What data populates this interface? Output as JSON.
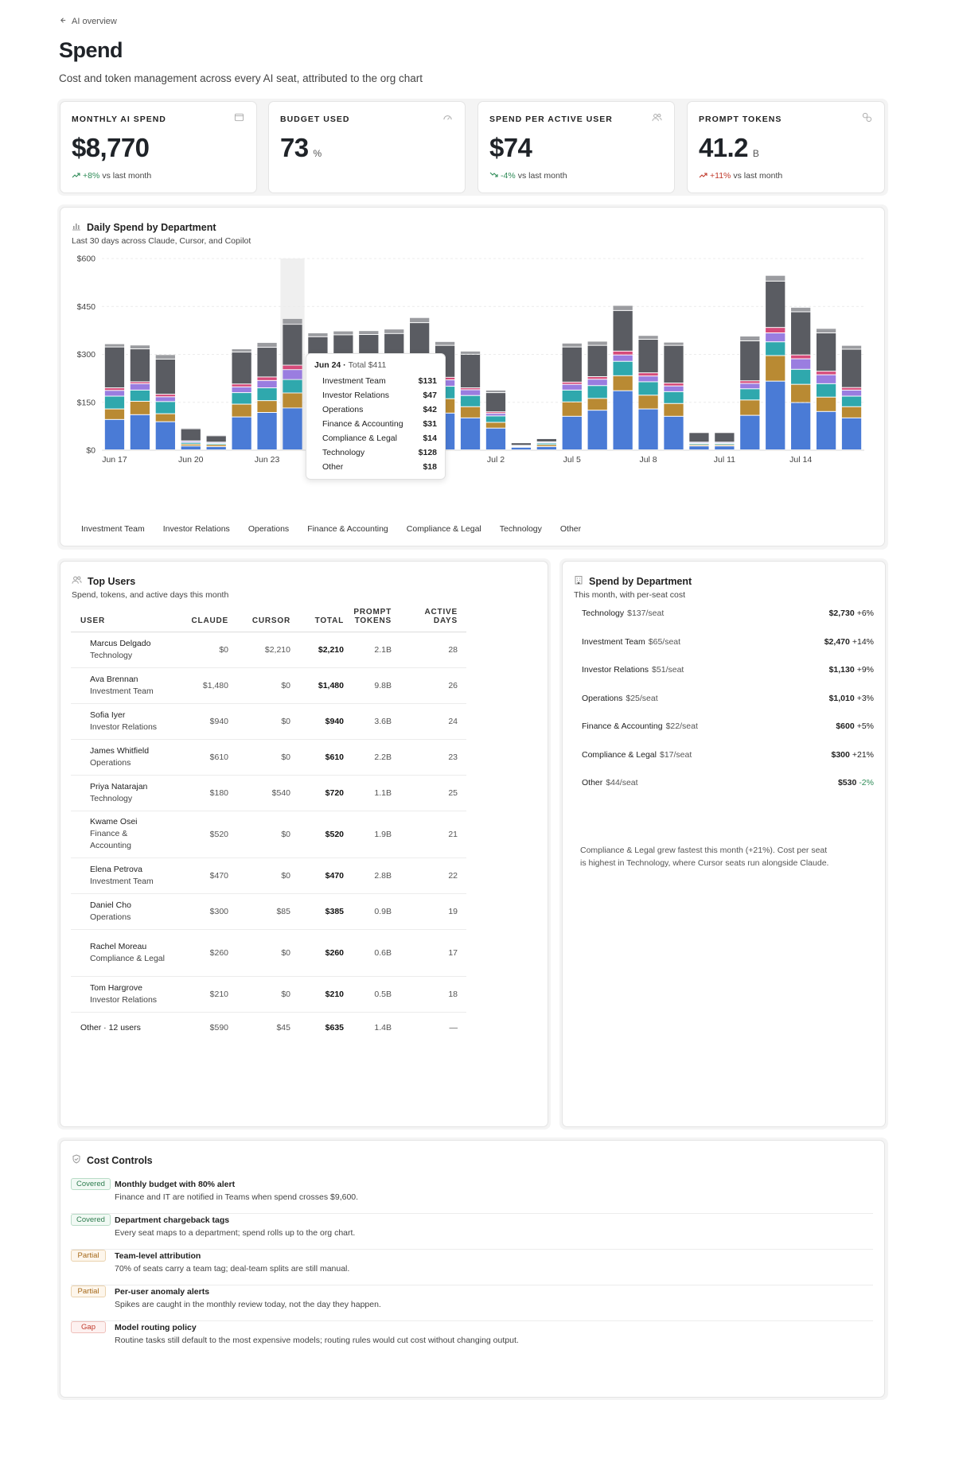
{
  "breadcrumb": {
    "back_label": "AI overview"
  },
  "page": {
    "title": "Spend",
    "subtitle": "Cost and token management across every AI seat, attributed to the org chart"
  },
  "kpis": [
    {
      "label": "MONTHLY AI SPEND",
      "value": "$8,770",
      "unit": "",
      "delta": "+8%",
      "delta_suffix": "vs last month",
      "trend": "up",
      "icon": "wallet-icon"
    },
    {
      "label": "BUDGET USED",
      "value": "73",
      "unit": "%",
      "delta": "",
      "delta_suffix": "",
      "trend": "",
      "icon": "gauge-icon"
    },
    {
      "label": "SPEND PER ACTIVE USER",
      "value": "$74",
      "unit": "",
      "delta": "-4%",
      "delta_suffix": "vs last month",
      "trend": "down",
      "icon": "users-icon"
    },
    {
      "label": "PROMPT TOKENS",
      "value": "41.2",
      "unit": "B",
      "delta": "+11%",
      "delta_suffix": "vs last month",
      "trend": "up-bad",
      "icon": "link-icon"
    }
  ],
  "daily_chart": {
    "title": "Daily Spend by Department",
    "subtitle": "Last 30 days across Claude, Cursor, and Copilot"
  },
  "chart_data": {
    "type": "bar",
    "stacked": true,
    "ylim": [
      0,
      600
    ],
    "yticks": [
      "$0",
      "$150",
      "$300",
      "$450",
      "$600"
    ],
    "ytick_values": [
      0,
      150,
      300,
      450,
      600
    ],
    "xtick_labels": [
      "Jun 17",
      "Jun 20",
      "Jun 23",
      "Jun 26",
      "Jun 29",
      "Jul 2",
      "Jul 5",
      "Jul 8",
      "Jul 11",
      "Jul 14"
    ],
    "xtick_indices": [
      0,
      3,
      6,
      9,
      12,
      15,
      18,
      21,
      24,
      27
    ],
    "categories": [
      "Jun 17",
      "Jun 18",
      "Jun 19",
      "Jun 20",
      "Jun 21",
      "Jun 22",
      "Jun 23",
      "Jun 24",
      "Jun 25",
      "Jun 26",
      "Jun 27",
      "Jun 28",
      "Jun 29",
      "Jun 30",
      "Jul 1",
      "Jul 2",
      "Jul 3",
      "Jul 4",
      "Jul 5",
      "Jul 6",
      "Jul 7",
      "Jul 8",
      "Jul 9",
      "Jul 10",
      "Jul 11",
      "Jul 12",
      "Jul 13",
      "Jul 14",
      "Jul 15",
      "Jul 16"
    ],
    "colors": [
      "#4a7bd6",
      "#b98a33",
      "#2fa8ad",
      "#9a7de0",
      "#d64b7a",
      "#5a5c62",
      "#9b9ca0"
    ],
    "series": [
      {
        "name": "Investment Team",
        "values": [
          95,
          110,
          88,
          12,
          10,
          103,
          117,
          131,
          120,
          118,
          125,
          128,
          137,
          115,
          100,
          68,
          8,
          10,
          105,
          124,
          185,
          128,
          105,
          12,
          12,
          108,
          215,
          148,
          120,
          100
        ]
      },
      {
        "name": "Investor Relations",
        "values": [
          33,
          42,
          25,
          6,
          6,
          40,
          37,
          47,
          40,
          42,
          40,
          44,
          52,
          45,
          35,
          18,
          2,
          6,
          45,
          37,
          47,
          43,
          40,
          4,
          4,
          48,
          80,
          57,
          45,
          35
        ]
      },
      {
        "name": "Operations",
        "values": [
          40,
          35,
          38,
          5,
          4,
          36,
          40,
          42,
          40,
          38,
          40,
          40,
          42,
          39,
          35,
          20,
          2,
          5,
          37,
          40,
          45,
          42,
          37,
          4,
          4,
          35,
          43,
          47,
          42,
          33
        ]
      },
      {
        "name": "Finance & Accounting",
        "values": [
          18,
          20,
          15,
          4,
          3,
          18,
          23,
          31,
          22,
          24,
          24,
          28,
          26,
          20,
          18,
          8,
          1,
          3,
          18,
          20,
          20,
          18,
          18,
          3,
          3,
          17,
          28,
          33,
          28,
          19
        ]
      },
      {
        "name": "Compliance & Legal",
        "values": [
          8,
          6,
          8,
          1,
          1,
          9,
          11,
          14,
          12,
          12,
          12,
          14,
          13,
          8,
          6,
          5,
          1,
          1,
          7,
          8,
          12,
          10,
          9,
          1,
          1,
          8,
          17,
          12,
          11,
          8
        ]
      },
      {
        "name": "Technology",
        "values": [
          128,
          103,
          110,
          38,
          20,
          100,
          93,
          128,
          120,
          126,
          120,
          110,
          128,
          100,
          105,
          60,
          8,
          10,
          110,
          98,
          127,
          105,
          118,
          30,
          30,
          125,
          145,
          135,
          120,
          120
        ]
      },
      {
        "name": "Other",
        "values": [
          10,
          12,
          14,
          3,
          3,
          10,
          15,
          18,
          12,
          12,
          12,
          14,
          16,
          12,
          10,
          8,
          1,
          2,
          12,
          13,
          16,
          12,
          10,
          2,
          2,
          15,
          18,
          14,
          14,
          12
        ]
      }
    ],
    "highlight_index": 7,
    "tooltip": {
      "date": "Jun 24",
      "total_label": "Total $411",
      "rows": [
        {
          "name": "Investment Team",
          "value": "$131"
        },
        {
          "name": "Investor Relations",
          "value": "$47"
        },
        {
          "name": "Operations",
          "value": "$42"
        },
        {
          "name": "Finance & Accounting",
          "value": "$31"
        },
        {
          "name": "Compliance & Legal",
          "value": "$14"
        },
        {
          "name": "Technology",
          "value": "$128"
        },
        {
          "name": "Other",
          "value": "$18"
        }
      ]
    },
    "legend": [
      "Investment Team",
      "Investor Relations",
      "Operations",
      "Finance & Accounting",
      "Compliance & Legal",
      "Technology",
      "Other"
    ]
  },
  "top_users": {
    "title": "Top Users",
    "subtitle": "Spend, tokens, and active days this month",
    "columns": [
      "USER",
      "CLAUDE",
      "CURSOR",
      "TOTAL",
      "PROMPT TOKENS",
      "ACTIVE DAYS"
    ],
    "rows": [
      {
        "name": "Marcus Delgado",
        "dept": "Technology",
        "claude": "$0",
        "cursor": "$2,210",
        "total": "$2,210",
        "tokens": "2.1B",
        "days": "28"
      },
      {
        "name": "Ava Brennan",
        "dept": "Investment Team",
        "claude": "$1,480",
        "cursor": "$0",
        "total": "$1,480",
        "tokens": "9.8B",
        "days": "26"
      },
      {
        "name": "Sofia Iyer",
        "dept": "Investor Relations",
        "claude": "$940",
        "cursor": "$0",
        "total": "$940",
        "tokens": "3.6B",
        "days": "24"
      },
      {
        "name": "James Whitfield",
        "dept": "Operations",
        "claude": "$610",
        "cursor": "$0",
        "total": "$610",
        "tokens": "2.2B",
        "days": "23"
      },
      {
        "name": "Priya Natarajan",
        "dept": "Technology",
        "claude": "$180",
        "cursor": "$540",
        "total": "$720",
        "tokens": "1.1B",
        "days": "25"
      },
      {
        "name": "Kwame Osei",
        "dept": "Finance & Accounting",
        "claude": "$520",
        "cursor": "$0",
        "total": "$520",
        "tokens": "1.9B",
        "days": "21"
      },
      {
        "name": "Elena Petrova",
        "dept": "Investment Team",
        "claude": "$470",
        "cursor": "$0",
        "total": "$470",
        "tokens": "2.8B",
        "days": "22"
      },
      {
        "name": "Daniel Cho",
        "dept": "Operations",
        "claude": "$300",
        "cursor": "$85",
        "total": "$385",
        "tokens": "0.9B",
        "days": "19"
      },
      {
        "name": "Rachel Moreau",
        "dept": "Compliance & Legal",
        "claude": "$260",
        "cursor": "$0",
        "total": "$260",
        "tokens": "0.6B",
        "days": "17"
      },
      {
        "name": "Tom Hargrove",
        "dept": "Investor Relations",
        "claude": "$210",
        "cursor": "$0",
        "total": "$210",
        "tokens": "0.5B",
        "days": "18"
      }
    ],
    "other_row": {
      "name": "Other · 12 users",
      "claude": "$590",
      "cursor": "$45",
      "total": "$635",
      "tokens": "1.4B",
      "days": "—"
    }
  },
  "spend_by_department": {
    "title": "Spend by Department",
    "subtitle": "This month, with per-seat cost",
    "rows": [
      {
        "name": "Technology",
        "seat": "$137/seat",
        "amount": "$2,730",
        "change": "+6%"
      },
      {
        "name": "Investment Team",
        "seat": "$65/seat",
        "amount": "$2,470",
        "change": "+14%"
      },
      {
        "name": "Investor Relations",
        "seat": "$51/seat",
        "amount": "$1,130",
        "change": "+9%"
      },
      {
        "name": "Operations",
        "seat": "$25/seat",
        "amount": "$1,010",
        "change": "+3%"
      },
      {
        "name": "Finance & Accounting",
        "seat": "$22/seat",
        "amount": "$600",
        "change": "+5%"
      },
      {
        "name": "Compliance & Legal",
        "seat": "$17/seat",
        "amount": "$300",
        "change": "+21%"
      },
      {
        "name": "Other",
        "seat": "$44/seat",
        "amount": "$530",
        "change": "-2%"
      }
    ],
    "note": "Compliance & Legal grew fastest this month (+21%). Cost per seat is highest in Technology, where Cursor seats run alongside Claude."
  },
  "cost_controls": {
    "title": "Cost Controls",
    "items": [
      {
        "status": "Covered",
        "kind": "covered",
        "title": "Monthly budget with 80% alert",
        "desc": "Finance and IT are notified in Teams when spend crosses $9,600."
      },
      {
        "status": "Covered",
        "kind": "covered",
        "title": "Department chargeback tags",
        "desc": "Every seat maps to a department; spend rolls up to the org chart."
      },
      {
        "status": "Partial",
        "kind": "partial",
        "title": "Team-level attribution",
        "desc": "70% of seats carry a team tag; deal-team splits are still manual."
      },
      {
        "status": "Partial",
        "kind": "partial",
        "title": "Per-user anomaly alerts",
        "desc": "Spikes are caught in the monthly review today, not the day they happen."
      },
      {
        "status": "Gap",
        "kind": "gap",
        "title": "Model routing policy",
        "desc": "Routine tasks still default to the most expensive models; routing rules would cut cost without changing output."
      }
    ]
  }
}
